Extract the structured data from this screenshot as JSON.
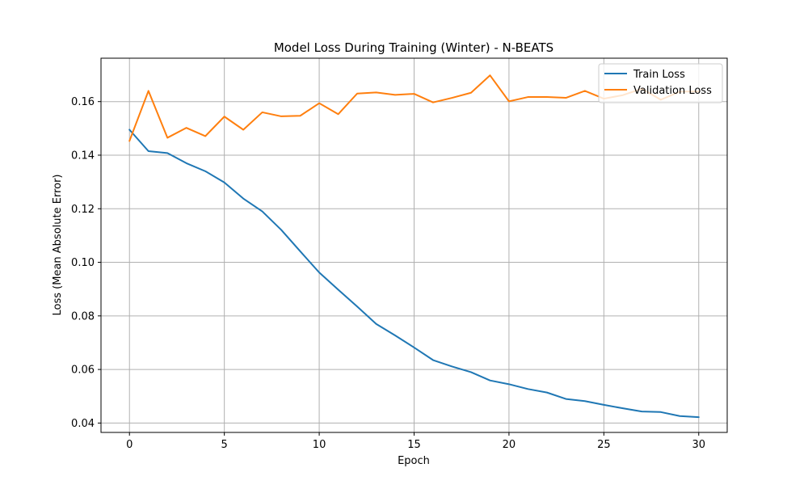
{
  "colors": {
    "train": "#1f77b4",
    "validation": "#ff7f0e",
    "grid": "#b0b0b0",
    "axis": "#000000",
    "background": "#ffffff"
  },
  "chart_data": {
    "type": "line",
    "title": "Model Loss During Training (Winter) - N-BEATS",
    "xlabel": "Epoch",
    "ylabel": "Loss (Mean Absolute Error)",
    "xlim": [
      -1.5,
      31.5
    ],
    "ylim": [
      0.0365,
      0.1762
    ],
    "xticks": [
      0,
      5,
      10,
      15,
      20,
      25,
      30
    ],
    "xtick_labels": [
      "0",
      "5",
      "10",
      "15",
      "20",
      "25",
      "30"
    ],
    "yticks": [
      0.04,
      0.06,
      0.08,
      0.1,
      0.12,
      0.14,
      0.16
    ],
    "ytick_labels": [
      "0.04",
      "0.06",
      "0.08",
      "0.10",
      "0.12",
      "0.14",
      "0.16"
    ],
    "grid": true,
    "legend_position": "top-right",
    "x": [
      0,
      1,
      2,
      3,
      4,
      5,
      6,
      7,
      8,
      9,
      10,
      11,
      12,
      13,
      14,
      15,
      16,
      17,
      18,
      19,
      20,
      21,
      22,
      23,
      24,
      25,
      26,
      27,
      28,
      29,
      30
    ],
    "series": [
      {
        "name": "Train Loss",
        "color": "#1f77b4",
        "values": [
          0.1495,
          0.1415,
          0.1408,
          0.137,
          0.134,
          0.1298,
          0.1238,
          0.119,
          0.1121,
          0.1041,
          0.0962,
          0.0898,
          0.0835,
          0.077,
          0.0727,
          0.0682,
          0.0635,
          0.0611,
          0.059,
          0.0559,
          0.0545,
          0.0527,
          0.0514,
          0.049,
          0.0482,
          0.0468,
          0.0455,
          0.0443,
          0.0441,
          0.0426,
          0.0422
        ]
      },
      {
        "name": "Validation Loss",
        "color": "#ff7f0e",
        "values": [
          0.1453,
          0.164,
          0.1465,
          0.1502,
          0.1471,
          0.1544,
          0.1495,
          0.156,
          0.1545,
          0.1547,
          0.1594,
          0.1553,
          0.163,
          0.1634,
          0.1625,
          0.1629,
          0.1597,
          0.1614,
          0.1633,
          0.1698,
          0.1601,
          0.1617,
          0.1617,
          0.1614,
          0.164,
          0.1611,
          0.1624,
          0.1648,
          0.1607,
          0.1637,
          0.1638
        ]
      }
    ]
  }
}
